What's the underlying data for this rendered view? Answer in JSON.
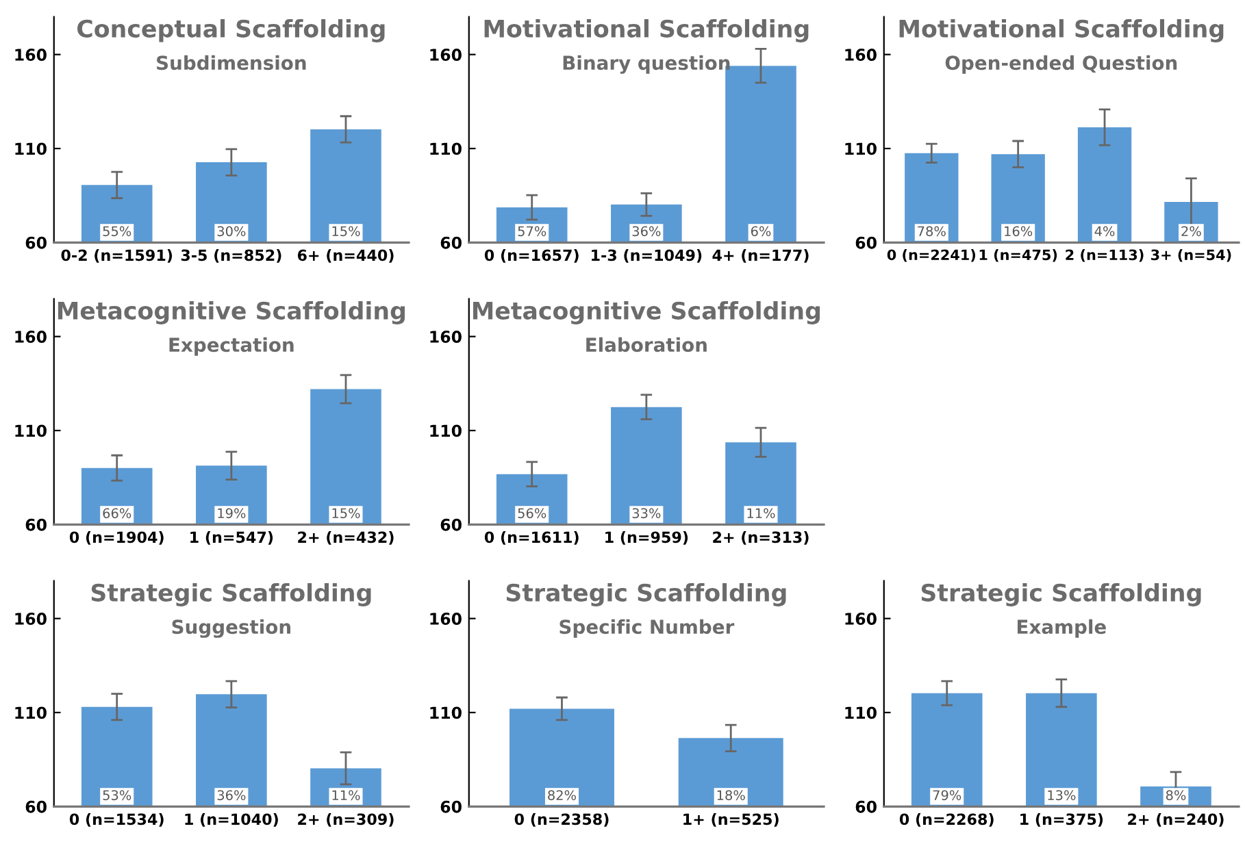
{
  "chart_data": [
    {
      "type": "bar",
      "title": "Conceptual Scaffolding",
      "subtitle": "Subdimension",
      "categories": [
        "0-2 (n=1591)",
        "3-5 (n=852)",
        "6+ (n=440)"
      ],
      "values": [
        90.6,
        102.7,
        120.2
      ],
      "errors": [
        7,
        7,
        7
      ],
      "color": "#5b9bd5",
      "ylim": [
        60,
        180
      ],
      "yticks": [
        60,
        110,
        160
      ],
      "annotations": [
        "55%",
        "30%",
        "15%"
      ]
    },
    {
      "type": "bar",
      "title": "Motivational Scaffolding",
      "subtitle": "Binary question",
      "categories": [
        "0 (n=1657)",
        "1-3 (n=1049)",
        "4+ (n=177)"
      ],
      "values": [
        78.7,
        80.2,
        154
      ],
      "errors": [
        6.5,
        6,
        9
      ],
      "color": "#5b9bd5",
      "ylim": [
        60,
        180
      ],
      "yticks": [
        60,
        110,
        160
      ],
      "annotations": [
        "57%",
        "36%",
        "6%"
      ]
    },
    {
      "type": "bar",
      "title": "Motivational Scaffolding",
      "subtitle": "Open-ended Question",
      "categories": [
        "0 (n=2241)",
        "1 (n=475)",
        "2 (n=113)",
        "3+ (n=54)"
      ],
      "values": [
        107.5,
        107,
        121.3,
        81.6
      ],
      "errors": [
        5,
        7,
        9.5,
        12.5
      ],
      "color": "#5b9bd5",
      "ylim": [
        60,
        180
      ],
      "yticks": [
        60,
        110,
        160
      ],
      "annotations": [
        "78%",
        "16%",
        "4%",
        "2%"
      ]
    },
    {
      "type": "bar",
      "title": "Metacognitive Scaffolding",
      "subtitle": "Expectation",
      "categories": [
        "0 (n=1904)",
        "1 (n=547)",
        "2+ (n=432)"
      ],
      "values": [
        90.1,
        91.3,
        132
      ],
      "errors": [
        6.7,
        7.4,
        7.5
      ],
      "color": "#5b9bd5",
      "ylim": [
        60,
        180
      ],
      "yticks": [
        60,
        110,
        160
      ],
      "annotations": [
        "66%",
        "19%",
        "15%"
      ]
    },
    {
      "type": "bar",
      "title": "Metacognitive Scaffolding",
      "subtitle": "Elaboration",
      "categories": [
        "0 (n=1611)",
        "1 (n=959)",
        "2+ (n=313)"
      ],
      "values": [
        86.8,
        122.5,
        103.7
      ],
      "errors": [
        6.5,
        6.5,
        7.7
      ],
      "color": "#5b9bd5",
      "ylim": [
        60,
        180
      ],
      "yticks": [
        60,
        110,
        160
      ],
      "annotations": [
        "56%",
        "33%",
        "11%"
      ]
    },
    {
      "type": "bar",
      "title": "Strategic Scaffolding",
      "subtitle": "Suggestion",
      "categories": [
        "0 (n=1534)",
        "1 (n=1040)",
        "2+ (n=309)"
      ],
      "values": [
        113,
        119.7,
        80.3
      ],
      "errors": [
        7,
        7,
        8.5
      ],
      "color": "#5b9bd5",
      "ylim": [
        60,
        180
      ],
      "yticks": [
        60,
        110,
        160
      ],
      "annotations": [
        "53%",
        "36%",
        "11%"
      ]
    },
    {
      "type": "bar",
      "title": "Strategic Scaffolding",
      "subtitle": "Specific Number",
      "categories": [
        "0 (n=2358)",
        "1+ (n=525)"
      ],
      "values": [
        112,
        96.4
      ],
      "errors": [
        6,
        7
      ],
      "color": "#5b9bd5",
      "ylim": [
        60,
        180
      ],
      "yticks": [
        60,
        110,
        160
      ],
      "annotations": [
        "82%",
        "18%"
      ]
    },
    {
      "type": "bar",
      "title": "Strategic Scaffolding",
      "subtitle": "Example",
      "categories": [
        "0 (n=2268)",
        "1 (n=375)",
        "2+ (n=240)"
      ],
      "values": [
        120.3,
        120.3,
        70.7
      ],
      "errors": [
        6.4,
        7.3,
        7.7
      ],
      "color": "#5b9bd5",
      "ylim": [
        60,
        180
      ],
      "yticks": [
        60,
        110,
        160
      ],
      "annotations": [
        "79%",
        "13%",
        "8%"
      ]
    }
  ]
}
